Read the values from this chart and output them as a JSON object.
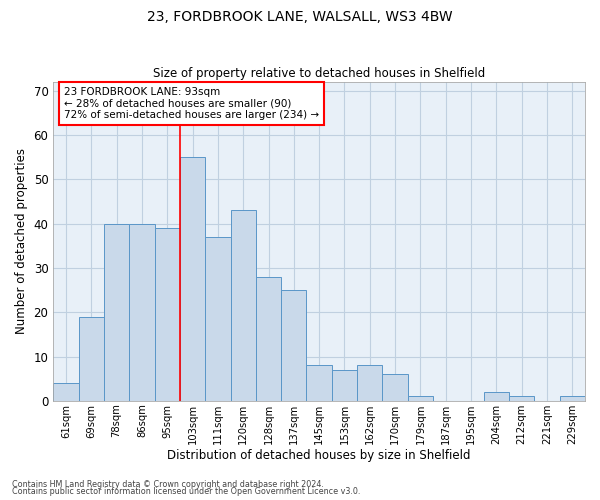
{
  "title_line1": "23, FORDBROOK LANE, WALSALL, WS3 4BW",
  "title_line2": "Size of property relative to detached houses in Shelfield",
  "xlabel": "Distribution of detached houses by size in Shelfield",
  "ylabel": "Number of detached properties",
  "categories": [
    "61sqm",
    "69sqm",
    "78sqm",
    "86sqm",
    "95sqm",
    "103sqm",
    "111sqm",
    "120sqm",
    "128sqm",
    "137sqm",
    "145sqm",
    "153sqm",
    "162sqm",
    "170sqm",
    "179sqm",
    "187sqm",
    "195sqm",
    "204sqm",
    "212sqm",
    "221sqm",
    "229sqm"
  ],
  "values": [
    4,
    19,
    40,
    40,
    39,
    55,
    37,
    43,
    28,
    25,
    8,
    7,
    8,
    6,
    1,
    0,
    0,
    2,
    1,
    0,
    1
  ],
  "bar_color": "#c9d9ea",
  "bar_edge_color": "#5a96c8",
  "grid_color": "#c0d0e0",
  "bg_color": "#e8f0f8",
  "annotation_line1": "23 FORDBROOK LANE: 93sqm",
  "annotation_line2": "← 28% of detached houses are smaller (90)",
  "annotation_line3": "72% of semi-detached houses are larger (234) →",
  "red_line_x": 4.5,
  "ylim": [
    0,
    72
  ],
  "yticks": [
    0,
    10,
    20,
    30,
    40,
    50,
    60,
    70
  ],
  "footnote1": "Contains HM Land Registry data © Crown copyright and database right 2024.",
  "footnote2": "Contains public sector information licensed under the Open Government Licence v3.0."
}
